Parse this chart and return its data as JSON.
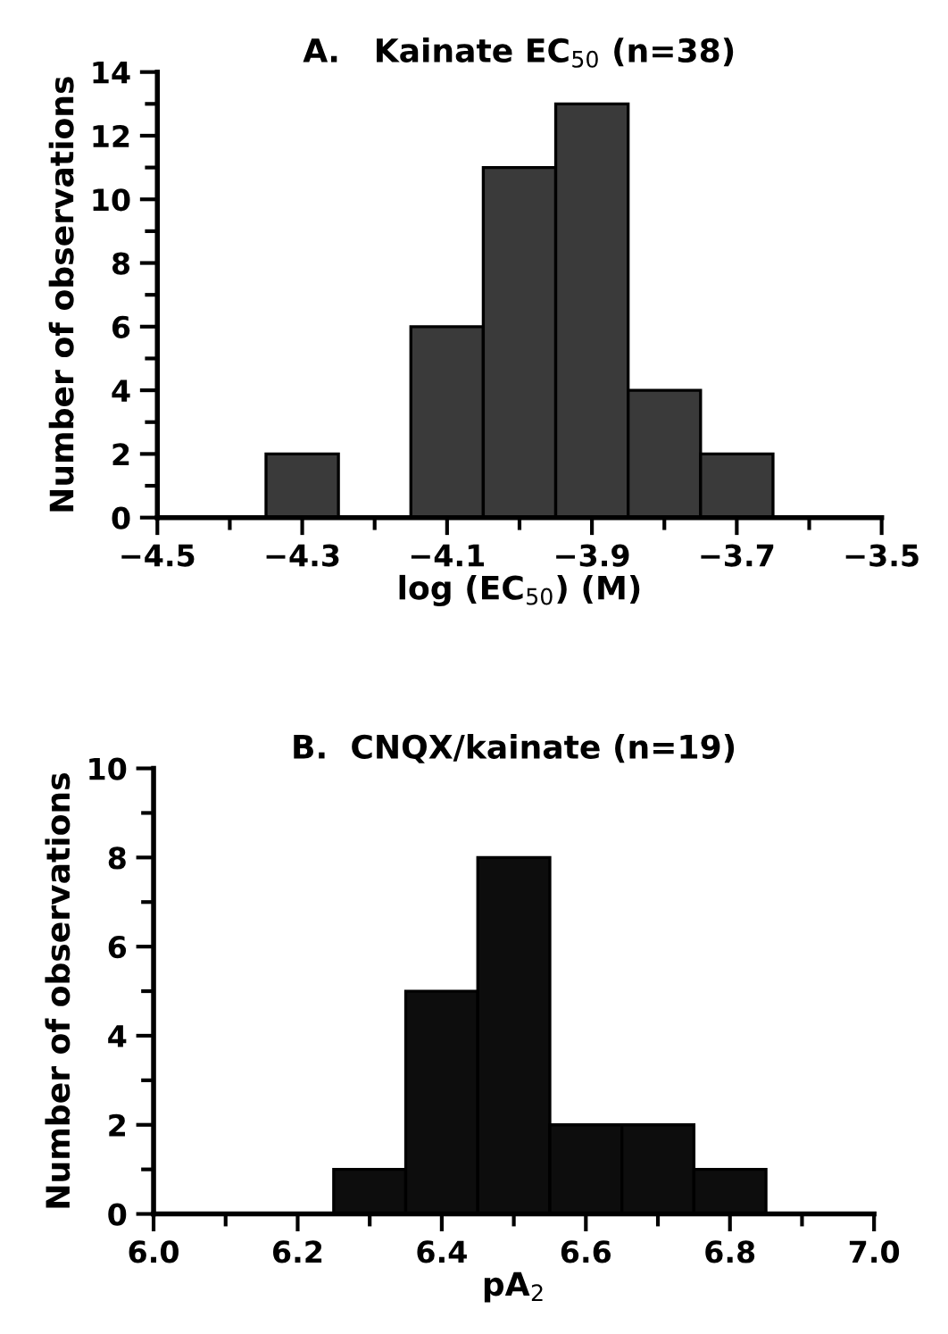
{
  "chart_data": [
    {
      "type": "histogram",
      "title": "A.   Kainate EC$_{50}$ (n=38)",
      "xlabel": "log (EC$_{50}$) (M)",
      "ylabel": "Number of observations",
      "bins": [
        -4.35,
        -4.25,
        -4.15,
        -4.05,
        -3.95,
        -3.85,
        -3.75,
        -3.65
      ],
      "values": [
        2,
        0,
        6,
        11,
        13,
        4,
        2
      ],
      "color": "#3a3a3a",
      "xlim": [
        -4.5,
        -3.5
      ],
      "xticks": [
        {
          "value": -4.5,
          "label": "−4.5"
        },
        {
          "value": -4.3,
          "label": "−4.3"
        },
        {
          "value": -4.1,
          "label": "−4.1"
        },
        {
          "value": -3.9,
          "label": "−3.9"
        },
        {
          "value": -3.7,
          "label": "−3.7"
        },
        {
          "value": -3.5,
          "label": "−3.5"
        }
      ],
      "ylim": [
        0,
        14
      ],
      "yticks": [
        0,
        2,
        4,
        6,
        8,
        10,
        12,
        14
      ],
      "grid": false
    },
    {
      "type": "histogram",
      "title": "B.  CNQX/kainate (n=19)",
      "xlabel": "pA$_{2}$",
      "ylabel": "Number of observations",
      "bins": [
        6.25,
        6.35,
        6.45,
        6.55,
        6.65,
        6.75,
        6.85
      ],
      "values": [
        1,
        5,
        8,
        2,
        2,
        1
      ],
      "color": "#0d0d0d",
      "xlim": [
        6.0,
        7.0
      ],
      "xticks": [
        {
          "value": 6.0,
          "label": "6.0"
        },
        {
          "value": 6.2,
          "label": "6.2"
        },
        {
          "value": 6.4,
          "label": "6.4"
        },
        {
          "value": 6.6,
          "label": "6.6"
        },
        {
          "value": 6.8,
          "label": "6.8"
        },
        {
          "value": 7.0,
          "label": "7.0"
        }
      ],
      "ylim": [
        0,
        10
      ],
      "yticks": [
        0,
        2,
        4,
        6,
        8,
        10
      ],
      "grid": false
    }
  ]
}
